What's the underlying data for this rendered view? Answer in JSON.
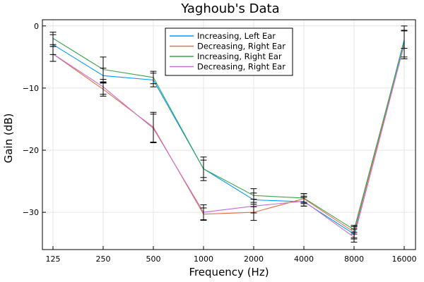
{
  "chart_data": {
    "type": "line",
    "title": "Yaghoub's Data",
    "xlabel": "Frequency (Hz)",
    "ylabel": "Gain (dB)",
    "x_scale": "log2",
    "x": [
      125,
      250,
      500,
      1000,
      2000,
      4000,
      8000,
      16000
    ],
    "x_tick_labels": [
      "125",
      "250",
      "500",
      "1000",
      "2000",
      "4000",
      "8000",
      "16000"
    ],
    "ylim": [
      -36,
      1
    ],
    "y_ticks": [
      0,
      -10,
      -20,
      -30
    ],
    "y_tick_labels": [
      "0",
      "−10",
      "−20",
      "−30"
    ],
    "grid": true,
    "legend_position": "top-center",
    "error_bar_color": "#000000",
    "series": [
      {
        "name": "Increasing, Left Ear",
        "color": "#009af9",
        "values": [
          -3.0,
          -8.0,
          -8.7,
          -23.0,
          -28.0,
          -28.3,
          -33.5,
          -2.2
        ],
        "errors": [
          1.6,
          1.2,
          1.1,
          1.4,
          1.1,
          0.7,
          0.8,
          1.4
        ]
      },
      {
        "name": "Decreasing, Right Ear",
        "color": "#e26f46",
        "values": [
          -4.5,
          -10.2,
          -16.3,
          -30.3,
          -30.0,
          -27.8,
          -33.2,
          -3.0
        ],
        "errors": [
          1.2,
          1.1,
          2.4,
          1.0,
          1.3,
          0.8,
          0.9,
          2.3
        ]
      },
      {
        "name": "Increasing, Right Ear",
        "color": "#3da44d",
        "values": [
          -2.0,
          -7.0,
          -8.3,
          -23.0,
          -27.3,
          -27.7,
          -32.8,
          -2.5
        ],
        "errors": [
          1.0,
          2.0,
          1.0,
          1.9,
          1.1,
          0.7,
          0.7,
          2.5
        ]
      },
      {
        "name": "Decreasing, Right Ear",
        "color": "#c271d2",
        "values": [
          -4.5,
          -9.8,
          -16.5,
          -30.0,
          -29.0,
          -28.2,
          -34.0,
          -3.0
        ],
        "errors": [
          1.2,
          1.2,
          2.3,
          1.2,
          1.1,
          0.8,
          0.8,
          2.3
        ]
      }
    ]
  }
}
